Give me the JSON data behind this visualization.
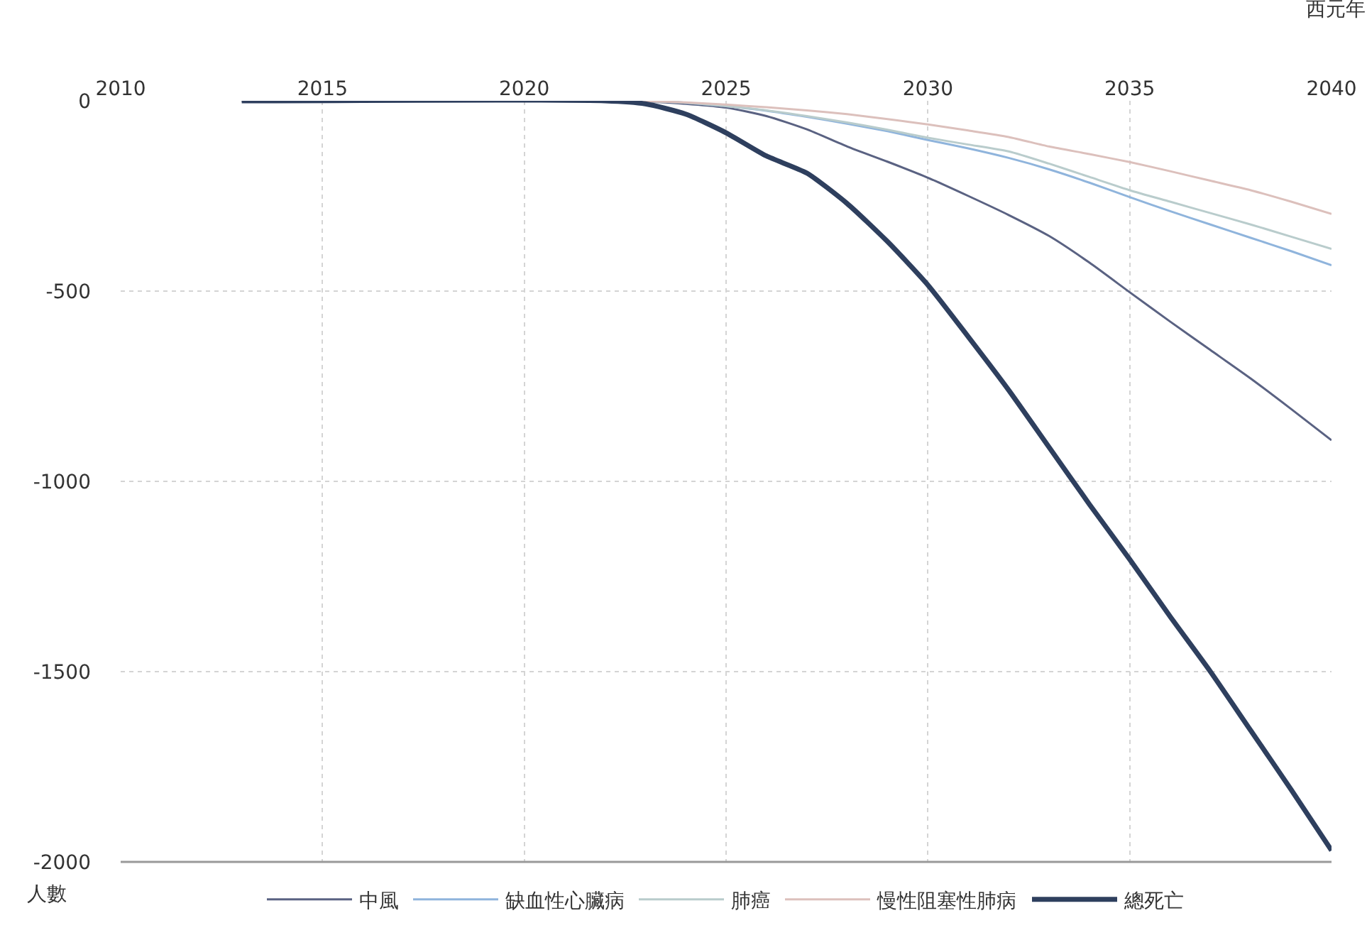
{
  "chart_data": {
    "type": "line",
    "xlabel": "西元年",
    "ylabel": "人數",
    "x": [
      2013,
      2022,
      2023,
      2024,
      2025,
      2026,
      2027,
      2028,
      2029,
      2030,
      2031,
      2032,
      2033,
      2034,
      2035,
      2036,
      2037,
      2038,
      2039,
      2040
    ],
    "series": [
      {
        "name": "中風",
        "color": "#5a6282",
        "values": [
          0,
          0,
          -2,
          -8,
          -18,
          -40,
          -75,
          -120,
          -160,
          -202,
          -250,
          -300,
          -355,
          -425,
          -503,
          -580,
          -655,
          -730,
          -810,
          -892
        ]
      },
      {
        "name": "缺血性心臟病",
        "color": "#8fb4dc",
        "values": [
          0,
          0,
          -1,
          -5,
          -14,
          -26,
          -42,
          -60,
          -80,
          -103,
          -125,
          -150,
          -180,
          -215,
          -253,
          -290,
          -325,
          -360,
          -395,
          -432
        ]
      },
      {
        "name": "肺癌",
        "color": "#b9cccc",
        "values": [
          0,
          0,
          -1,
          -5,
          -14,
          -25,
          -40,
          -57,
          -76,
          -97,
          -115,
          -133,
          -165,
          -200,
          -235,
          -265,
          -295,
          -325,
          -357,
          -389
        ]
      },
      {
        "name": "慢性阻塞性肺病",
        "color": "#dcc0bc",
        "values": [
          0,
          0,
          -1,
          -4,
          -10,
          -17,
          -25,
          -35,
          -48,
          -62,
          -78,
          -95,
          -120,
          -140,
          -161,
          -185,
          -210,
          -235,
          -265,
          -297
        ]
      },
      {
        "name": "總死亡",
        "color": "#2e3f5e",
        "values": [
          0,
          0,
          -8,
          -35,
          -84,
          -145,
          -190,
          -270,
          -370,
          -484,
          -620,
          -760,
          -910,
          -1060,
          -1205,
          -1355,
          -1500,
          -1655,
          -1810,
          -1970
        ]
      }
    ],
    "xlim": [
      2010,
      2040
    ],
    "xticks": [
      2010,
      2015,
      2020,
      2025,
      2030,
      2035,
      2040
    ],
    "ylim": [
      -2000,
      0
    ],
    "yticks": [
      -2000,
      -1500,
      -1000,
      -500,
      0
    ],
    "grid": true,
    "legend": "bottom",
    "marker": "none",
    "line_style": "solid"
  }
}
